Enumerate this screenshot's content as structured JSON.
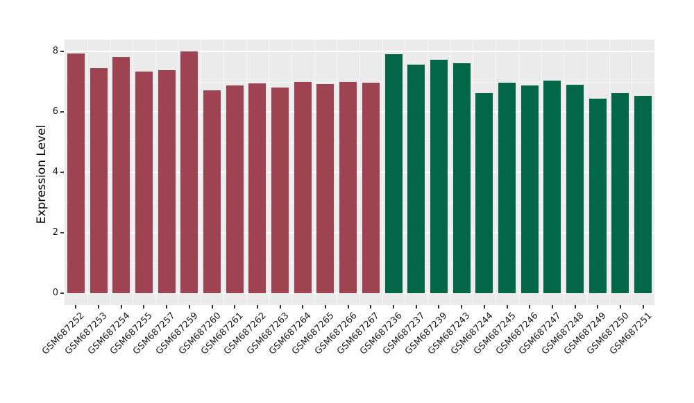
{
  "figure": {
    "background": "#ffffff",
    "panel_background": "#ebebeb",
    "grid_major_color": "#ffffff",
    "grid_minor_color": "#f7f7f7",
    "text_color": "#1a1a1a",
    "tick_color": "#333333"
  },
  "chart_data": {
    "type": "bar",
    "title": "",
    "xlabel": "",
    "ylabel": "Expression Level",
    "ylim": [
      0,
      8
    ],
    "ylim_display": [
      -0.4,
      8.4
    ],
    "yticks": [
      0,
      2,
      4,
      6,
      8
    ],
    "yticks_minor": [
      1,
      3,
      5,
      7
    ],
    "grid": true,
    "legend": "none",
    "categories": [
      "GSM687252",
      "GSM687253",
      "GSM687254",
      "GSM687255",
      "GSM687257",
      "GSM687259",
      "GSM687260",
      "GSM687261",
      "GSM687262",
      "GSM687263",
      "GSM687264",
      "GSM687265",
      "GSM687266",
      "GSM687267",
      "GSM687236",
      "GSM687237",
      "GSM687239",
      "GSM687243",
      "GSM687244",
      "GSM687245",
      "GSM687246",
      "GSM687247",
      "GSM687248",
      "GSM687249",
      "GSM687250",
      "GSM687251"
    ],
    "values": [
      7.95,
      7.45,
      7.82,
      7.33,
      7.39,
      8.0,
      6.72,
      6.89,
      6.96,
      6.81,
      6.99,
      6.93,
      7.0,
      6.98,
      7.91,
      7.58,
      7.74,
      7.61,
      6.62,
      6.97,
      6.88,
      7.03,
      6.91,
      6.44,
      6.62,
      6.53
    ],
    "groups": [
      0,
      0,
      0,
      0,
      0,
      0,
      0,
      0,
      0,
      0,
      0,
      0,
      0,
      0,
      1,
      1,
      1,
      1,
      1,
      1,
      1,
      1,
      1,
      1,
      1,
      1
    ],
    "group_colors": [
      "#9e4351",
      "#026649"
    ]
  }
}
